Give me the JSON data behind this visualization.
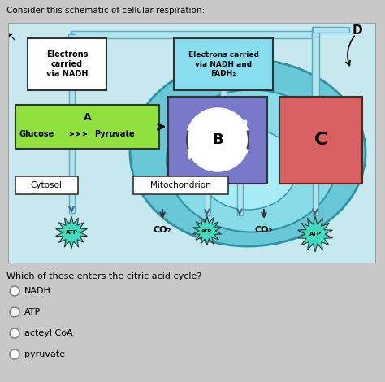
{
  "title": "Consider this schematic of cellular respiration:",
  "bg_light": "#c8e8f0",
  "bg_outer": "#7ec8d8",
  "mito_outer_color": "#50b8cc",
  "mito_inner_color": "#80d8e8",
  "white": "#ffffff",
  "green_box": "#90e040",
  "purple_box": "#7878c8",
  "red_box": "#d86060",
  "atp_color": "#40e0c0",
  "page_bg": "#c8c8c8",
  "question": "Which of these enters the citric acid cycle?",
  "options": [
    "NADH",
    "ATP",
    "acteyl CoA",
    "pyruvate"
  ],
  "top_left_title": "Electrons\ncarried\nvia NADH",
  "top_mid_title": "Electrons carried\nvia NADH and\nFADH₂",
  "D_label": "D",
  "A_label": "A",
  "B_label": "B",
  "C_label": "C",
  "glucose_label": "Glucose",
  "pyruvate_label": "Pyruvate",
  "cytosol_label": "Cytosol",
  "mito_label": "Mitochondrion",
  "co2_1": "CO₂",
  "co2_2": "CO₂",
  "atp_label": "ATP"
}
